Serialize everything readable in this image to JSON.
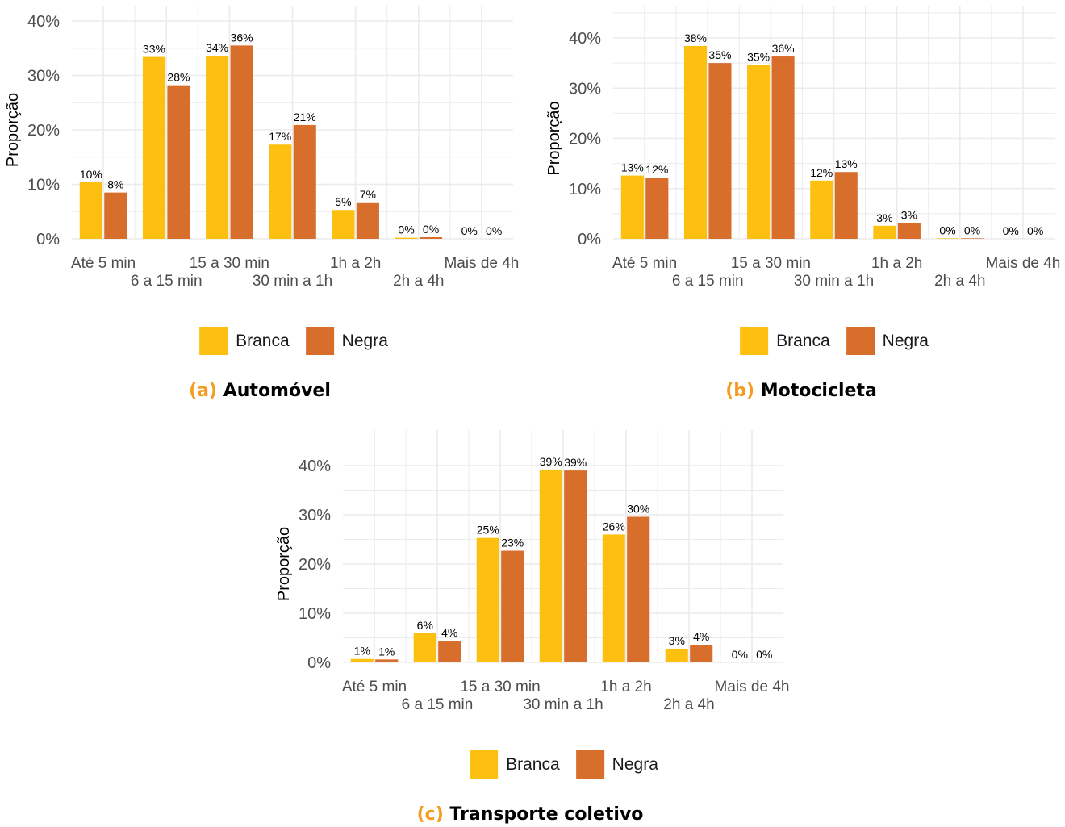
{
  "colors": {
    "branca": "#FDC010",
    "negra": "#D86E2B",
    "grid": "#EBEBEB",
    "axis_text": "#4D4D4D",
    "caption_tag": "#F39C1F"
  },
  "legend": {
    "branca": "Branca",
    "negra": "Negra"
  },
  "chart_data": [
    {
      "type": "bar",
      "caption_tag": "(a)",
      "caption_title": "Automóvel",
      "ylabel": "Proporção",
      "ylim": [
        0,
        40
      ],
      "yticks": [
        "0%",
        "10%",
        "20%",
        "30%",
        "40%"
      ],
      "categories": [
        "Até 5 min",
        "6 a 15 min",
        "15 a 30 min",
        "30 min a 1h",
        "1h a 2h",
        "2h a 4h",
        "Mais de 4h"
      ],
      "series": [
        {
          "name": "Branca",
          "values": [
            10.4,
            33.4,
            33.6,
            17.3,
            5.3,
            0.2,
            0.0
          ],
          "labels": [
            "10%",
            "33%",
            "34%",
            "17%",
            "5%",
            "0%",
            "0%"
          ]
        },
        {
          "name": "Negra",
          "values": [
            8.5,
            28.2,
            35.5,
            20.9,
            6.7,
            0.3,
            0.0
          ],
          "labels": [
            "8%",
            "28%",
            "36%",
            "21%",
            "7%",
            "0%",
            "0%"
          ]
        }
      ]
    },
    {
      "type": "bar",
      "caption_tag": "(b)",
      "caption_title": "Motocicleta",
      "ylabel": "Proporção",
      "ylim": [
        0,
        40
      ],
      "yticks": [
        "0%",
        "10%",
        "20%",
        "30%",
        "40%"
      ],
      "categories": [
        "Até 5 min",
        "6 a 15 min",
        "15 a 30 min",
        "30 min a 1h",
        "1h a 2h",
        "2h a 4h",
        "Mais de 4h"
      ],
      "series": [
        {
          "name": "Branca",
          "values": [
            12.6,
            38.4,
            34.6,
            11.6,
            2.6,
            0.1,
            0.0
          ],
          "labels": [
            "13%",
            "38%",
            "35%",
            "12%",
            "3%",
            "0%",
            "0%"
          ]
        },
        {
          "name": "Negra",
          "values": [
            12.2,
            35.0,
            36.3,
            13.3,
            3.1,
            0.1,
            0.0
          ],
          "labels": [
            "12%",
            "35%",
            "36%",
            "13%",
            "3%",
            "0%",
            "0%"
          ]
        }
      ]
    },
    {
      "type": "bar",
      "caption_tag": "(c)",
      "caption_title": "Transporte coletivo",
      "ylabel": "Proporção",
      "ylim": [
        0,
        40
      ],
      "yticks": [
        "0%",
        "10%",
        "20%",
        "30%",
        "40%"
      ],
      "categories": [
        "Até 5 min",
        "6 a 15 min",
        "15 a 30 min",
        "30 min a 1h",
        "1h a 2h",
        "2h a 4h",
        "Mais de 4h"
      ],
      "series": [
        {
          "name": "Branca",
          "values": [
            0.7,
            5.9,
            25.3,
            39.2,
            26.0,
            2.8,
            0.0
          ],
          "labels": [
            "1%",
            "6%",
            "25%",
            "39%",
            "26%",
            "3%",
            "0%"
          ]
        },
        {
          "name": "Negra",
          "values": [
            0.6,
            4.4,
            22.7,
            39.0,
            29.6,
            3.6,
            0.0
          ],
          "labels": [
            "1%",
            "4%",
            "23%",
            "39%",
            "30%",
            "4%",
            "0%"
          ]
        }
      ]
    }
  ]
}
